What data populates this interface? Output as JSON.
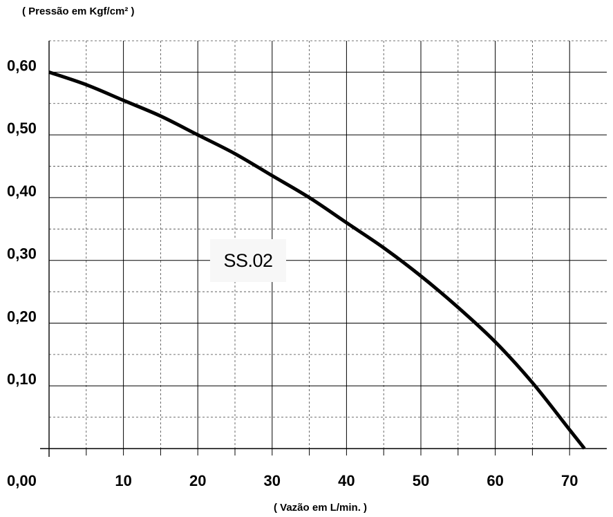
{
  "chart_data": {
    "type": "line",
    "ylabel": "( Pressão em Kgf/cm² )",
    "xlabel": "( Vazão em L/min. )",
    "xlim": [
      0,
      75
    ],
    "ylim": [
      0,
      0.65
    ],
    "x_ticks": [
      {
        "value": 10,
        "label": "10"
      },
      {
        "value": 20,
        "label": "20"
      },
      {
        "value": 30,
        "label": "30"
      },
      {
        "value": 40,
        "label": "40"
      },
      {
        "value": 50,
        "label": "50"
      },
      {
        "value": 60,
        "label": "60"
      },
      {
        "value": 70,
        "label": "70"
      }
    ],
    "origin_label": "0,00",
    "y_ticks": [
      {
        "value": 0.1,
        "label": "0,10"
      },
      {
        "value": 0.2,
        "label": "0,20"
      },
      {
        "value": 0.3,
        "label": "0,30"
      },
      {
        "value": 0.4,
        "label": "0,40"
      },
      {
        "value": 0.5,
        "label": "0,50"
      },
      {
        "value": 0.6,
        "label": "0,60"
      }
    ],
    "grid": true,
    "annotation": "SS.02",
    "series": [
      {
        "x": [
          0,
          5,
          10,
          15,
          20,
          25,
          30,
          35,
          40,
          45,
          50,
          55,
          60,
          65,
          70,
          72
        ],
        "y": [
          0.6,
          0.58,
          0.555,
          0.53,
          0.5,
          0.47,
          0.435,
          0.4,
          0.36,
          0.32,
          0.275,
          0.225,
          0.17,
          0.105,
          0.03,
          0.0
        ]
      }
    ]
  }
}
